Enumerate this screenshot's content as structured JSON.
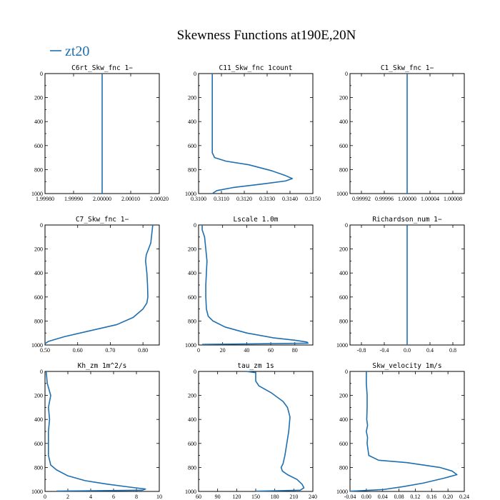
{
  "figure": {
    "title": "Skewness Functions at190E,20N",
    "legend": [
      {
        "label": "zt20",
        "color": "#1f6fb0"
      }
    ]
  },
  "chart_data": [
    {
      "type": "line",
      "title": "C6rt_Skw_fnc   1−",
      "xlim": [
        1.9998,
        2.0002
      ],
      "xticks": [
        1.9998,
        1.9999,
        2.0,
        2.0001,
        2.0002
      ],
      "xtick_labels": [
        "1.99980",
        "1.99990",
        "2.00000",
        "2.00010",
        "2.00020"
      ],
      "ylim": [
        0,
        1000
      ],
      "yticks": [
        0,
        200,
        400,
        600,
        800,
        1000
      ],
      "series": [
        {
          "name": "zt20",
          "color": "#1f6fb0",
          "points": [
            [
              2.0,
              0
            ],
            [
              2.0,
              1000
            ]
          ]
        }
      ]
    },
    {
      "type": "line",
      "title": "C11_Skw_fnc   1count",
      "xlim": [
        0.31,
        0.315
      ],
      "xticks": [
        0.31,
        0.311,
        0.312,
        0.313,
        0.314,
        0.315
      ],
      "xtick_labels": [
        "0.3100",
        "0.3110",
        "0.3120",
        "0.3130",
        "0.3140",
        "0.3150"
      ],
      "ylim": [
        0,
        1000
      ],
      "yticks": [
        0,
        200,
        400,
        600,
        800,
        1000
      ],
      "series": [
        {
          "name": "zt20",
          "color": "#1f6fb0",
          "points": [
            [
              0.3106,
              0
            ],
            [
              0.3106,
              200
            ],
            [
              0.3106,
              400
            ],
            [
              0.3106,
              600
            ],
            [
              0.3106,
              660
            ],
            [
              0.3107,
              700
            ],
            [
              0.3112,
              730
            ],
            [
              0.3122,
              760
            ],
            [
              0.3132,
              810
            ],
            [
              0.3138,
              850
            ],
            [
              0.3141,
              875
            ],
            [
              0.3138,
              895
            ],
            [
              0.3128,
              920
            ],
            [
              0.3115,
              950
            ],
            [
              0.3108,
              975
            ],
            [
              0.3106,
              1000
            ]
          ]
        }
      ]
    },
    {
      "type": "line",
      "title": "C1_Skw_fnc   1−",
      "xlim": [
        0.9999,
        1.0001
      ],
      "xticks": [
        0.99992,
        0.99996,
        1.0,
        1.00004,
        1.00008
      ],
      "xtick_labels": [
        "0.99992",
        "0.99996",
        "1.00000",
        "1.00004",
        "1.00008"
      ],
      "ylim": [
        0,
        1000
      ],
      "yticks": [
        0,
        200,
        400,
        600,
        800,
        1000
      ],
      "series": [
        {
          "name": "zt20",
          "color": "#1f6fb0",
          "points": [
            [
              1.0,
              0
            ],
            [
              1.0,
              1000
            ]
          ]
        }
      ]
    },
    {
      "type": "line",
      "title": "C7_Skw_fnc   1−",
      "xlim": [
        0.5,
        0.85
      ],
      "xticks": [
        0.5,
        0.6,
        0.7,
        0.8
      ],
      "xtick_labels": [
        "0.50",
        "0.60",
        "0.70",
        "0.80"
      ],
      "ylim": [
        0,
        1000
      ],
      "yticks": [
        0,
        200,
        400,
        600,
        800,
        1000
      ],
      "series": [
        {
          "name": "zt20",
          "color": "#1f6fb0",
          "points": [
            [
              0.83,
              0
            ],
            [
              0.828,
              50
            ],
            [
              0.824,
              150
            ],
            [
              0.81,
              250
            ],
            [
              0.808,
              300
            ],
            [
              0.812,
              400
            ],
            [
              0.814,
              500
            ],
            [
              0.815,
              600
            ],
            [
              0.812,
              650
            ],
            [
              0.8,
              700
            ],
            [
              0.77,
              770
            ],
            [
              0.72,
              830
            ],
            [
              0.64,
              880
            ],
            [
              0.56,
              930
            ],
            [
              0.51,
              970
            ],
            [
              0.5,
              990
            ]
          ]
        }
      ]
    },
    {
      "type": "line",
      "title": "Lscale   1.0m",
      "xlim": [
        0,
        95
      ],
      "xticks": [
        0,
        20,
        40,
        60,
        80
      ],
      "xtick_labels": [
        "0",
        "20",
        "40",
        "60",
        "80"
      ],
      "ylim": [
        0,
        1000
      ],
      "yticks": [
        0,
        200,
        400,
        600,
        800,
        1000
      ],
      "series": [
        {
          "name": "zt20",
          "color": "#1f6fb0",
          "points": [
            [
              3,
              0
            ],
            [
              3,
              40
            ],
            [
              5,
              100
            ],
            [
              6,
              200
            ],
            [
              7,
              300
            ],
            [
              6.5,
              400
            ],
            [
              6,
              500
            ],
            [
              6,
              600
            ],
            [
              6.5,
              700
            ],
            [
              8,
              760
            ],
            [
              12,
              800
            ],
            [
              22,
              850
            ],
            [
              40,
              900
            ],
            [
              62,
              940
            ],
            [
              80,
              960
            ],
            [
              90,
              975
            ],
            [
              91,
              985
            ],
            [
              3,
              995
            ]
          ]
        }
      ]
    },
    {
      "type": "line",
      "title": "Richardson_num   1−",
      "xlim": [
        -1,
        1
      ],
      "xticks": [
        -0.8,
        -0.4,
        0.0,
        0.4,
        0.8
      ],
      "xtick_labels": [
        "-0.8",
        "-0.4",
        "0.0",
        "0.4",
        "0.8"
      ],
      "ylim": [
        0,
        1000
      ],
      "yticks": [
        0,
        200,
        400,
        600,
        800,
        1000
      ],
      "series": [
        {
          "name": "zt20",
          "color": "#1f6fb0",
          "points": [
            [
              0.0,
              0
            ],
            [
              0.0,
              1000
            ]
          ]
        }
      ]
    },
    {
      "type": "line",
      "title": "Kh_zm   1m^2/s",
      "xlim": [
        0,
        10
      ],
      "xticks": [
        0,
        2,
        4,
        6,
        8,
        10
      ],
      "xtick_labels": [
        "0",
        "2",
        "4",
        "6",
        "8",
        "10"
      ],
      "ylim": [
        0,
        1000
      ],
      "yticks": [
        0,
        200,
        400,
        600,
        800,
        1000
      ],
      "series": [
        {
          "name": "zt20",
          "color": "#1f6fb0",
          "points": [
            [
              0.1,
              0
            ],
            [
              0.2,
              100
            ],
            [
              0.5,
              200
            ],
            [
              0.3,
              300
            ],
            [
              0.4,
              400
            ],
            [
              0.3,
              500
            ],
            [
              0.3,
              600
            ],
            [
              0.3,
              700
            ],
            [
              0.5,
              780
            ],
            [
              1.0,
              820
            ],
            [
              2.0,
              870
            ],
            [
              3.5,
              910
            ],
            [
              5.5,
              940
            ],
            [
              7.5,
              965
            ],
            [
              8.8,
              980
            ],
            [
              8.5,
              990
            ],
            [
              1.0,
              997
            ]
          ]
        }
      ]
    },
    {
      "type": "line",
      "title": "tau_zm   1s",
      "xlim": [
        60,
        240
      ],
      "xticks": [
        60,
        90,
        120,
        150,
        180,
        210,
        240
      ],
      "xtick_labels": [
        "60",
        "90",
        "120",
        "150",
        "180",
        "210",
        "240"
      ],
      "ylim": [
        0,
        1000
      ],
      "yticks": [
        0,
        200,
        400,
        600,
        800,
        1000
      ],
      "series": [
        {
          "name": "zt20",
          "color": "#1f6fb0",
          "points": [
            [
              135,
              0
            ],
            [
              150,
              10
            ],
            [
              150,
              80
            ],
            [
              155,
              120
            ],
            [
              175,
              180
            ],
            [
              193,
              250
            ],
            [
              200,
              300
            ],
            [
              204,
              380
            ],
            [
              202,
              500
            ],
            [
              199,
              600
            ],
            [
              196,
              700
            ],
            [
              193,
              770
            ],
            [
              190,
              800
            ],
            [
              192,
              830
            ],
            [
              200,
              860
            ],
            [
              215,
              900
            ],
            [
              223,
              940
            ],
            [
              226,
              970
            ],
            [
              220,
              990
            ],
            [
              150,
              998
            ]
          ]
        }
      ]
    },
    {
      "type": "line",
      "title": "Skw_velocity   1m/s",
      "xlim": [
        -0.04,
        0.24
      ],
      "xticks": [
        -0.04,
        0.0,
        0.04,
        0.08,
        0.12,
        0.16,
        0.2,
        0.24
      ],
      "xtick_labels": [
        "-0.04",
        "0.00",
        "0.04",
        "0.08",
        "0.12",
        "0.16",
        "0.20",
        "0.24"
      ],
      "ylim": [
        0,
        1000
      ],
      "yticks": [
        0,
        200,
        400,
        600,
        800,
        1000
      ],
      "series": [
        {
          "name": "zt20",
          "color": "#1f6fb0",
          "points": [
            [
              0.0,
              0
            ],
            [
              0.0,
              100
            ],
            [
              0.002,
              200
            ],
            [
              0.002,
              300
            ],
            [
              0.001,
              400
            ],
            [
              0.003,
              450
            ],
            [
              0.0,
              500
            ],
            [
              0.003,
              550
            ],
            [
              0.002,
              600
            ],
            [
              0.006,
              700
            ],
            [
              0.03,
              740
            ],
            [
              0.1,
              760
            ],
            [
              0.18,
              800
            ],
            [
              0.21,
              830
            ],
            [
              0.222,
              860
            ],
            [
              0.19,
              890
            ],
            [
              0.14,
              930
            ],
            [
              0.09,
              960
            ],
            [
              0.04,
              985
            ],
            [
              -0.04,
              998
            ]
          ]
        }
      ]
    }
  ]
}
